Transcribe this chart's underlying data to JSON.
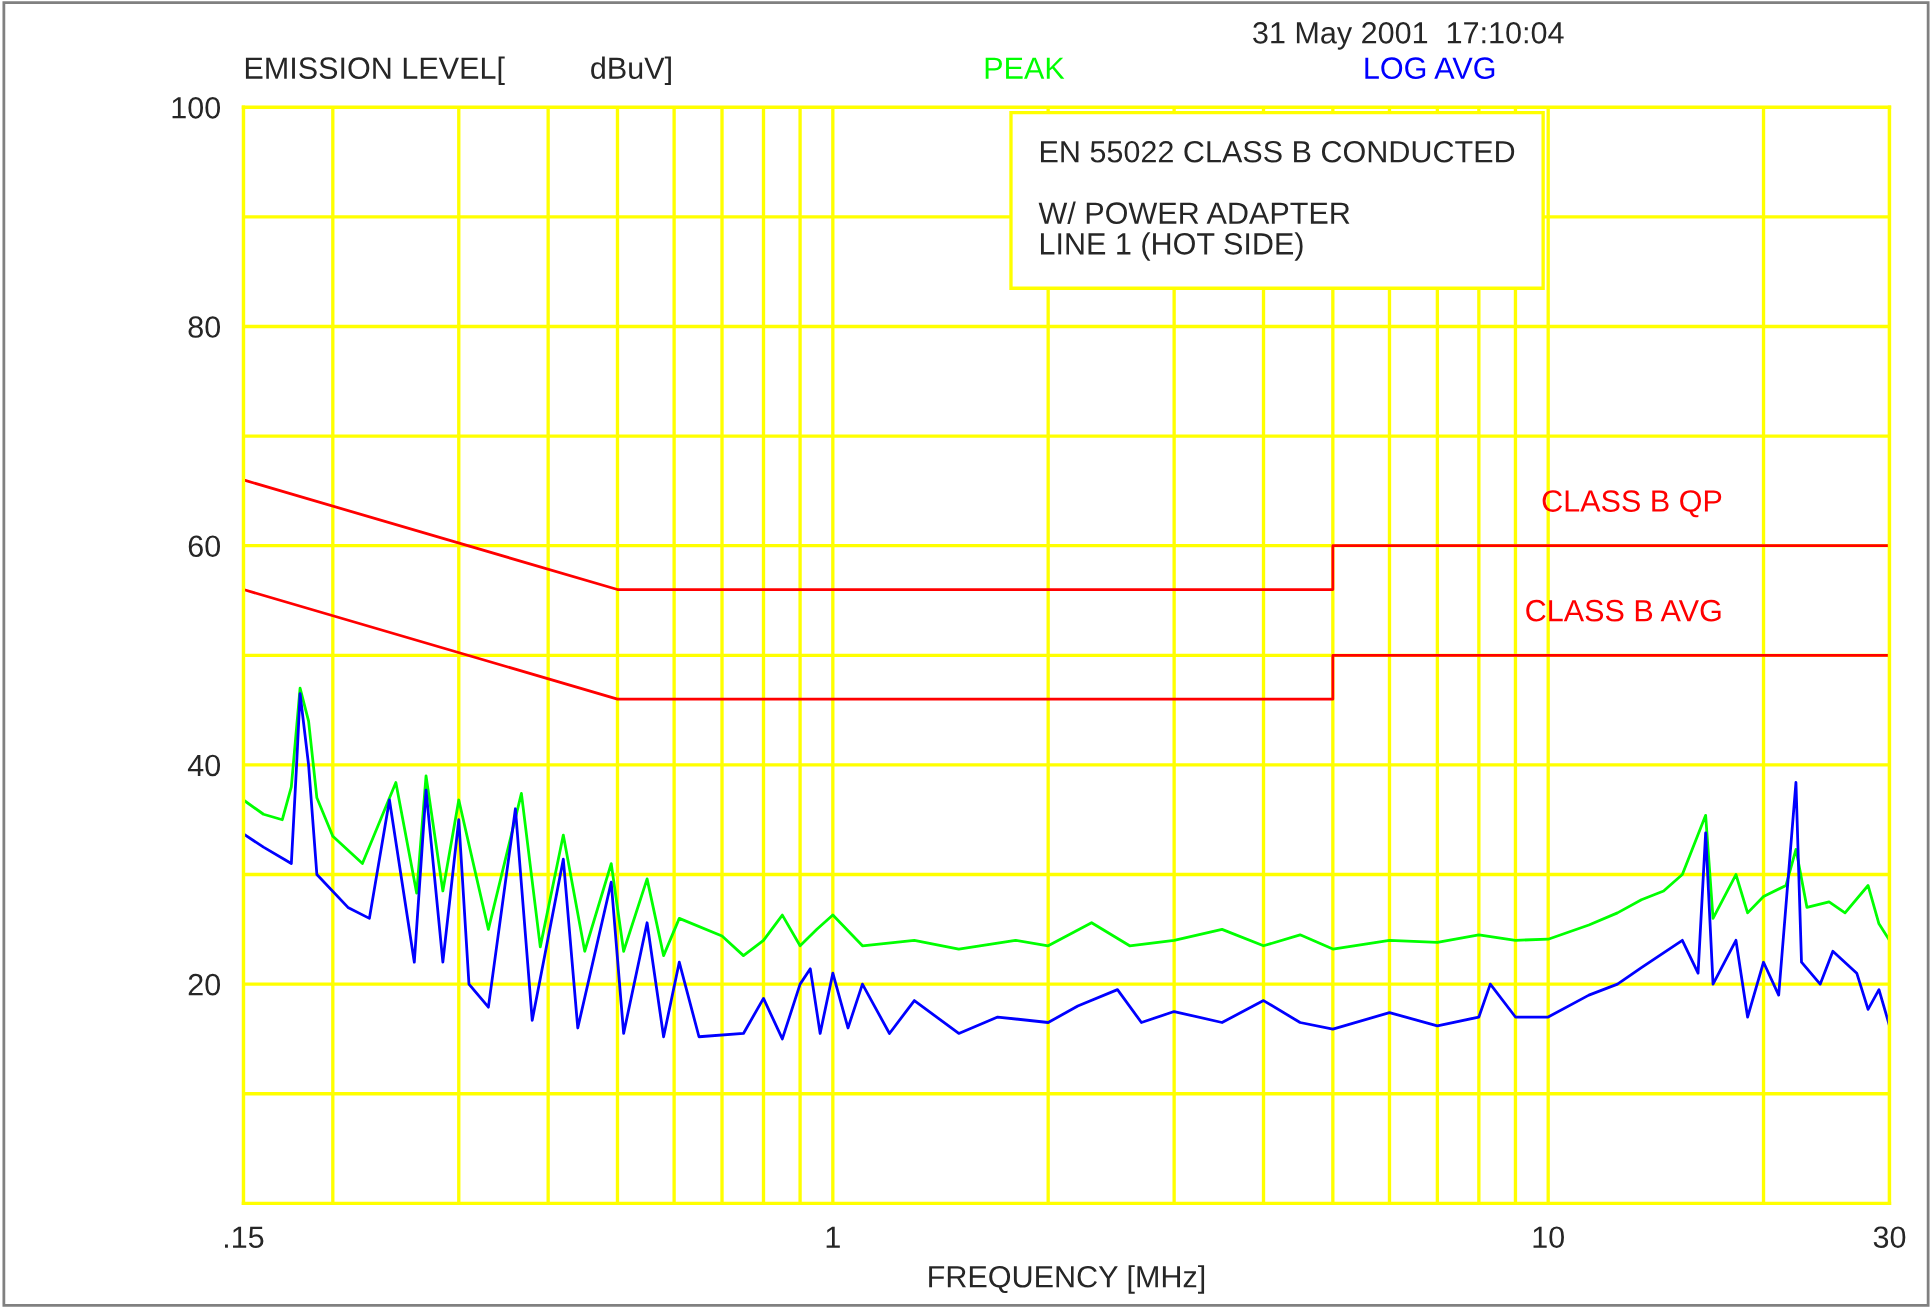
{
  "chart_data": {
    "type": "line",
    "ylabel": "EMISSION LEVEL[          dBuV]",
    "xlabel": "FREQUENCY [MHz]",
    "annotations": [
      "31 May 2001  17:10:04",
      "EN 55022 CLASS B CONDUCTED",
      "W/ POWER ADAPTER",
      "LINE 1 (HOT SIDE)"
    ],
    "log": "x",
    "xlim": [
      0.15,
      30
    ],
    "xticks": [
      {
        "value": 0.15,
        "label": ".15"
      },
      {
        "value": 0.2,
        "label": null
      },
      {
        "value": 0.3,
        "label": null
      },
      {
        "value": 0.4,
        "label": null
      },
      {
        "value": 0.5,
        "label": null
      },
      {
        "value": 0.6,
        "label": null
      },
      {
        "value": 0.7,
        "label": null
      },
      {
        "value": 0.8,
        "label": null
      },
      {
        "value": 0.9,
        "label": null
      },
      1,
      {
        "value": 2,
        "label": null
      },
      {
        "value": 3,
        "label": null
      },
      {
        "value": 4,
        "label": null
      },
      {
        "value": 5,
        "label": null
      },
      {
        "value": 6,
        "label": null
      },
      {
        "value": 7,
        "label": null
      },
      {
        "value": 8,
        "label": null
      },
      {
        "value": 9,
        "label": null
      },
      10,
      {
        "value": 20,
        "label": null
      },
      30
    ],
    "ylim": [
      0,
      100
    ],
    "yticks": [
      {
        "value": 10,
        "label": null
      },
      20,
      {
        "value": 30,
        "label": null
      },
      40,
      {
        "value": 50,
        "label": null
      },
      60,
      {
        "value": 70,
        "label": null
      },
      80,
      {
        "value": 90,
        "label": null
      },
      100
    ],
    "grid": true,
    "legend": false,
    "series": [
      {
        "name": "PEAK",
        "color": "#00ff00",
        "x": [
          0.15,
          0.16,
          0.17,
          0.175,
          0.18,
          0.185,
          0.19,
          0.2,
          0.22,
          0.245,
          0.262,
          0.27,
          0.285,
          0.3,
          0.33,
          0.367,
          0.39,
          0.42,
          0.45,
          0.49,
          0.51,
          0.55,
          0.58,
          0.61,
          0.7,
          0.75,
          0.8,
          0.85,
          0.9,
          0.95,
          1.0,
          1.1,
          1.3,
          1.5,
          1.8,
          2.0,
          2.3,
          2.6,
          3.0,
          3.5,
          4.0,
          4.5,
          5.0,
          6.0,
          7.0,
          8.0,
          9.0,
          10,
          11.4,
          12.5,
          13.5,
          14.5,
          15.4,
          16.6,
          17,
          18.3,
          19,
          20,
          21.5,
          22.2,
          23,
          24.7,
          26,
          28,
          29,
          30
        ],
        "values": [
          36.8,
          35.5,
          35,
          38,
          47,
          44,
          37,
          33.5,
          31,
          38.4,
          28.3,
          39,
          28.5,
          36.8,
          25,
          37.4,
          23.4,
          33.6,
          23,
          31,
          23,
          29.6,
          22.6,
          26,
          24.4,
          22.6,
          24,
          26.3,
          23.5,
          25,
          26.3,
          23.5,
          24,
          23.2,
          24,
          23.5,
          25.6,
          23.5,
          24,
          25,
          23.5,
          24.5,
          23.2,
          24,
          23.8,
          24.5,
          24,
          24.1,
          25.4,
          26.5,
          27.7,
          28.5,
          30,
          35.4,
          26,
          30,
          26.5,
          28,
          29,
          32.3,
          27,
          27.5,
          26.5,
          29,
          25.5,
          24
        ]
      },
      {
        "name": "LOG AVG",
        "color": "#0000ff",
        "x": [
          0.15,
          0.16,
          0.175,
          0.178,
          0.18,
          0.185,
          0.19,
          0.21,
          0.225,
          0.24,
          0.26,
          0.27,
          0.285,
          0.3,
          0.31,
          0.33,
          0.36,
          0.38,
          0.42,
          0.44,
          0.49,
          0.51,
          0.55,
          0.58,
          0.61,
          0.65,
          0.75,
          0.8,
          0.85,
          0.9,
          0.93,
          0.96,
          1.0,
          1.05,
          1.1,
          1.2,
          1.3,
          1.5,
          1.7,
          2.0,
          2.2,
          2.5,
          2.7,
          3.0,
          3.5,
          4.0,
          4.5,
          5.0,
          6.0,
          7.0,
          8.0,
          8.3,
          9.0,
          10,
          11.4,
          12.5,
          13.5,
          15.4,
          16.2,
          16.6,
          17,
          18.3,
          19,
          20,
          21,
          22.2,
          22.6,
          24,
          25,
          27,
          28,
          29,
          30
        ],
        "values": [
          33.7,
          32.5,
          31,
          40,
          46.5,
          40,
          30,
          27,
          26,
          36.8,
          22,
          37.7,
          22,
          35,
          20,
          17.9,
          36,
          16.7,
          31.4,
          16,
          29.3,
          15.5,
          25.6,
          15.2,
          22,
          15.2,
          15.5,
          18.7,
          15,
          20,
          21.4,
          15.5,
          21,
          16,
          20,
          15.5,
          18.5,
          15.5,
          17,
          16.5,
          18,
          19.5,
          16.5,
          17.5,
          16.5,
          18.5,
          16.5,
          15.9,
          17.4,
          16.2,
          17,
          20,
          17,
          17,
          19,
          20,
          21.5,
          24,
          21,
          33.8,
          20,
          24,
          17,
          22,
          19,
          38.4,
          22,
          20,
          23,
          21,
          17.7,
          19.5,
          16.2
        ]
      },
      {
        "name": "CLASS B QP",
        "color": "#ff0000",
        "x": [
          0.15,
          0.5,
          5,
          5,
          30
        ],
        "values": [
          66,
          56,
          56,
          60,
          60
        ]
      },
      {
        "name": "CLASS B AVG",
        "color": "#ff0000",
        "x": [
          0.15,
          0.5,
          5,
          5,
          30
        ],
        "values": [
          56,
          46,
          46,
          50,
          50
        ]
      }
    ]
  }
}
